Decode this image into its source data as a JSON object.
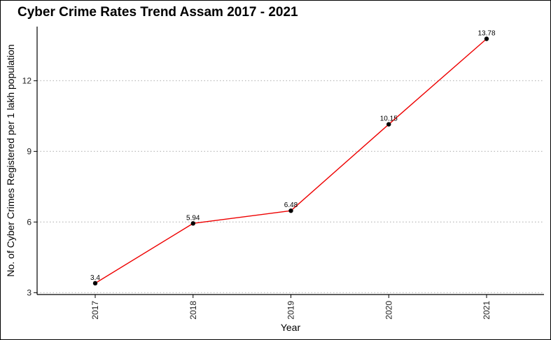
{
  "chart_data": {
    "type": "line",
    "title": "Cyber Crime Rates Trend Assam 2017 - 2021",
    "xlabel": "Year",
    "ylabel": "No. of Cyber Crimes Registered per 1 lakh population",
    "categories": [
      "2017",
      "2018",
      "2019",
      "2020",
      "2021"
    ],
    "values": [
      3.4,
      5.94,
      6.48,
      10.15,
      13.78
    ],
    "data_labels": [
      "3.4",
      "5.94",
      "6.48",
      "10.15",
      "13.78"
    ],
    "yticks": [
      3,
      6,
      9,
      12
    ],
    "ytick_labels": [
      "3",
      "6",
      "9",
      "12"
    ],
    "ylim": [
      2.92,
      14.3
    ],
    "grid": "horizontal-dotted",
    "legend": "none",
    "colors": {
      "line": "#ee0000",
      "point": "#000000",
      "grid": "#bbbbbb",
      "axis": "#000000"
    }
  }
}
